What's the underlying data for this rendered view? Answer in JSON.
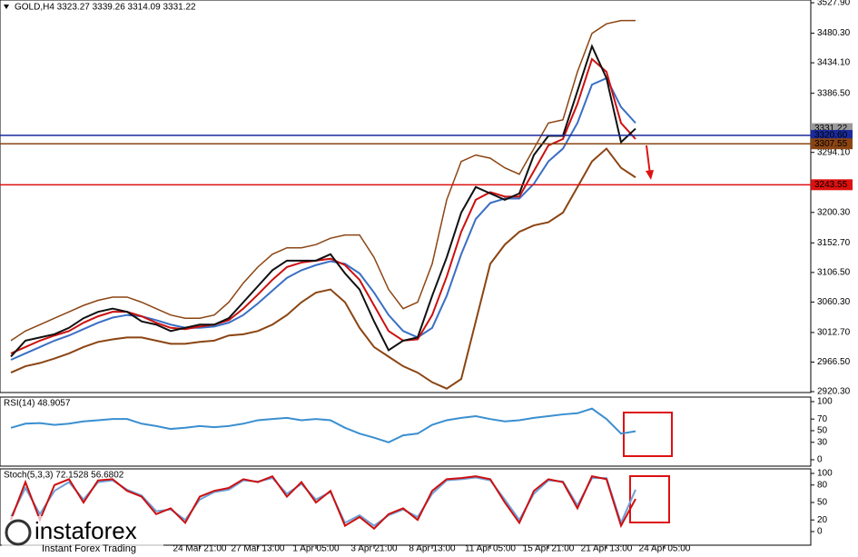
{
  "chart_data": [
    {
      "type": "line",
      "title": "GOLD,H4  3323.27 3339.26 3314.09 3331.22",
      "categories": [
        null,
        null,
        null,
        null,
        null,
        null,
        null,
        null,
        null,
        null,
        null,
        null,
        null,
        "24 Mar 21:00",
        null,
        null,
        null,
        "27 Mar 13:00",
        null,
        null,
        null,
        "1 Apr 05:00",
        null,
        null,
        null,
        "3 Apr 21:00",
        null,
        null,
        null,
        "8 Apr 13:00",
        null,
        null,
        null,
        "11 Apr 05:00",
        null,
        null,
        null,
        "15 Apr 21:00",
        null,
        null,
        null,
        "21 Apr 13:00",
        null,
        null,
        null,
        "24 Apr 05:00"
      ],
      "series": [
        {
          "color": "#8b4513",
          "values": [
            3000,
            3015,
            3025,
            3035,
            3045,
            3055,
            3063,
            3068,
            3068,
            3060,
            3050,
            3040,
            3035,
            3035,
            3040,
            3060,
            3090,
            3115,
            3135,
            3145,
            3145,
            3150,
            3160,
            3165,
            3165,
            3130,
            3080,
            3050,
            3060,
            3120,
            3220,
            3280,
            3290,
            3285,
            3270,
            3260,
            3300,
            3340,
            3345,
            3420,
            3480,
            3495,
            3500,
            3500,
            null,
            null
          ]
        },
        {
          "color": "#8b4513",
          "values": [
            2950,
            2960,
            2965,
            2972,
            2980,
            2990,
            2998,
            3002,
            3005,
            3005,
            3000,
            2995,
            2995,
            2998,
            3000,
            3008,
            3010,
            3015,
            3025,
            3040,
            3060,
            3075,
            3080,
            3060,
            3020,
            2990,
            2975,
            2960,
            2950,
            2935,
            2925,
            2940,
            3030,
            3120,
            3150,
            3170,
            3180,
            3185,
            3200,
            3240,
            3280,
            3300,
            3270,
            3255,
            null,
            null
          ]
        },
        {
          "color": "#3a6fc4",
          "values": [
            2970,
            2980,
            2990,
            3000,
            3008,
            3018,
            3028,
            3036,
            3040,
            3038,
            3032,
            3025,
            3020,
            3020,
            3022,
            3028,
            3040,
            3058,
            3078,
            3098,
            3110,
            3118,
            3124,
            3120,
            3105,
            3075,
            3040,
            3015,
            3005,
            3020,
            3070,
            3135,
            3190,
            3215,
            3222,
            3222,
            3245,
            3280,
            3300,
            3340,
            3400,
            3410,
            3365,
            3340,
            null,
            null
          ]
        },
        {
          "color": "#cc1010",
          "values": [
            2980,
            2990,
            3000,
            3008,
            3015,
            3028,
            3038,
            3045,
            3045,
            3038,
            3028,
            3020,
            3018,
            3022,
            3025,
            3032,
            3050,
            3072,
            3095,
            3115,
            3122,
            3125,
            3128,
            3118,
            3095,
            3055,
            3015,
            3000,
            3002,
            3040,
            3100,
            3170,
            3220,
            3232,
            3225,
            3225,
            3265,
            3305,
            3315,
            3370,
            3440,
            3420,
            3340,
            3315,
            null,
            null
          ]
        },
        {
          "color": "#111111",
          "values": [
            2975,
            3000,
            3005,
            3010,
            3020,
            3035,
            3045,
            3050,
            3045,
            3030,
            3025,
            3015,
            3020,
            3025,
            3025,
            3035,
            3060,
            3085,
            3110,
            3125,
            3125,
            3125,
            3135,
            3105,
            3080,
            3030,
            2985,
            3000,
            3005,
            3070,
            3130,
            3200,
            3240,
            3230,
            3220,
            3230,
            3290,
            3320,
            3320,
            3390,
            3460,
            3410,
            3310,
            3331.22,
            null,
            null
          ]
        }
      ],
      "ylim": [
        2918.9,
        3532.2
      ],
      "yticks": [
        {
          "value": 3527.9,
          "label": "3527.90"
        },
        {
          "value": 3480.3,
          "label": "3480.30"
        },
        {
          "value": 3434.1,
          "label": "3434.10"
        },
        {
          "value": 3386.5,
          "label": "3386.50"
        },
        {
          "value": 3294.1,
          "label": "3294.10"
        },
        {
          "value": 3200.3,
          "label": "3200.30"
        },
        {
          "value": 3152.7,
          "label": "3152.70"
        },
        {
          "value": 3106.5,
          "label": "3106.50"
        },
        {
          "value": 3060.3,
          "label": "3060.30"
        },
        {
          "value": 3012.7,
          "label": "3012.70"
        },
        {
          "value": 2966.5,
          "label": "2966.50"
        },
        {
          "value": 2920.3,
          "label": "2920.30"
        }
      ],
      "levels": [
        {
          "value": 3331.22,
          "label": "3331.22",
          "color": "#9a9a9a",
          "show_line": false
        },
        {
          "value": 3320.6,
          "label": "3320.60",
          "color": "#1a2a9a",
          "show_line": true
        },
        {
          "value": 3307.55,
          "label": "3307.55",
          "color": "#8b4513",
          "show_line": true
        },
        {
          "value": 3243.55,
          "label": "3243.55",
          "color": "#dd1111",
          "show_line": true
        }
      ]
    },
    {
      "type": "line",
      "title": "RSI(14) 48.9057",
      "series": [
        {
          "color": "#3a8fd0",
          "values": [
            55,
            62,
            63,
            60,
            62,
            66,
            68,
            70,
            70,
            62,
            58,
            53,
            55,
            58,
            56,
            58,
            62,
            68,
            70,
            72,
            68,
            70,
            68,
            55,
            45,
            38,
            30,
            42,
            45,
            60,
            68,
            72,
            75,
            70,
            66,
            68,
            72,
            75,
            78,
            80,
            88,
            70,
            45,
            49,
            null,
            null
          ]
        }
      ],
      "ylim": [
        -11,
        107.8
      ],
      "yticks": [
        100,
        70,
        50,
        30,
        0
      ]
    },
    {
      "type": "line",
      "title": "Stoch(5,3,3) 72.1528 56.6802",
      "series": [
        {
          "color": "#6fa0d8",
          "values": [
            25,
            75,
            30,
            70,
            85,
            55,
            85,
            88,
            72,
            62,
            35,
            38,
            20,
            55,
            68,
            72,
            88,
            86,
            92,
            65,
            82,
            55,
            68,
            15,
            28,
            10,
            28,
            38,
            25,
            65,
            88,
            90,
            93,
            88,
            55,
            20,
            65,
            88,
            86,
            45,
            92,
            92,
            15,
            72,
            null,
            null
          ]
        },
        {
          "color": "#cc1010",
          "values": [
            20,
            85,
            20,
            80,
            90,
            50,
            88,
            90,
            70,
            60,
            30,
            40,
            15,
            60,
            70,
            75,
            90,
            85,
            95,
            60,
            85,
            50,
            70,
            10,
            25,
            5,
            30,
            40,
            20,
            70,
            90,
            92,
            95,
            90,
            50,
            15,
            70,
            90,
            85,
            40,
            95,
            90,
            10,
            56,
            null,
            null
          ]
        }
      ],
      "ylim": [
        -23.4,
        107.8
      ],
      "yticks": [
        100,
        80,
        50,
        20,
        0
      ]
    }
  ],
  "watermark": {
    "name": "instaforex",
    "tagline": "Instant Forex Trading"
  }
}
